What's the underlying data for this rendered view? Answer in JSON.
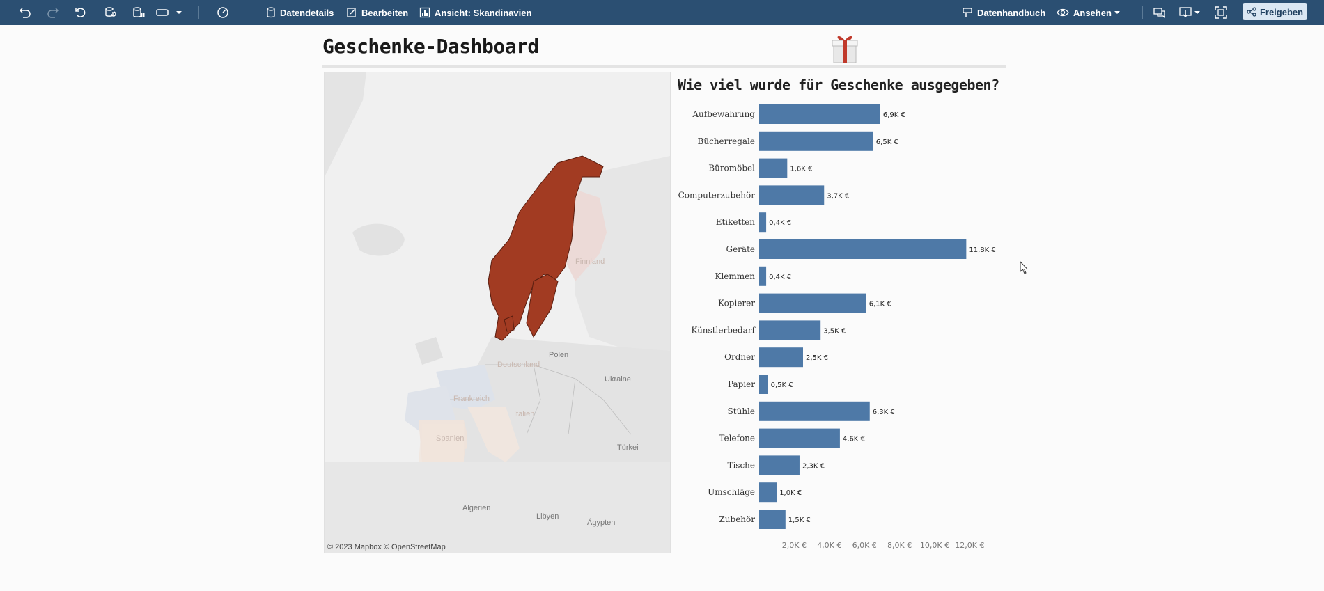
{
  "toolbar": {
    "data_details": "Datendetails",
    "edit": "Bearbeiten",
    "view_label": "Ansicht: Skandinavien",
    "data_guide": "Datenhandbuch",
    "watch": "Ansehen",
    "share": "Freigeben"
  },
  "dashboard": {
    "title": "Geschenke-Dashboard"
  },
  "map": {
    "attribution": "© 2023 Mapbox  © OpenStreetMap",
    "labels": {
      "finland": "Finnland",
      "poland": "Polen",
      "ukraine": "Ukraine",
      "germany": "Deutschland",
      "france": "Frankreich",
      "italy": "Italien",
      "spain": "Spanien",
      "turkey": "Türkei",
      "algeria": "Algerien",
      "libya": "Libyen",
      "egypt": "Ägypten"
    },
    "highlight_color": "#a23b22"
  },
  "chart_data": {
    "type": "bar",
    "orientation": "horizontal",
    "title": "Wie viel wurde für Geschenke ausgegeben?",
    "categories": [
      "Aufbewahrung",
      "Bücherregale",
      "Büromöbel",
      "Computerzubehör",
      "Etiketten",
      "Geräte",
      "Klemmen",
      "Kopierer",
      "Künstlerbedarf",
      "Ordner",
      "Papier",
      "Stühle",
      "Telefone",
      "Tische",
      "Umschläge",
      "Zubehör"
    ],
    "values": [
      6.9,
      6.5,
      1.6,
      3.7,
      0.4,
      11.8,
      0.4,
      6.1,
      3.5,
      2.5,
      0.5,
      6.3,
      4.6,
      2.3,
      1.0,
      1.5
    ],
    "data_labels": [
      "6,9K €",
      "6,5K €",
      "1,6K €",
      "3,7K €",
      "0,4K €",
      "11,8K €",
      "0,4K €",
      "6,1K €",
      "3,5K €",
      "2,5K €",
      "0,5K €",
      "6,3K €",
      "4,6K €",
      "2,3K €",
      "1,0K €",
      "1,5K €"
    ],
    "x_ticks": [
      "2,0K €",
      "4,0K €",
      "6,0K €",
      "8,0K €",
      "10,0K €",
      "12,0K €"
    ],
    "x_tick_values": [
      2,
      4,
      6,
      8,
      10,
      12
    ],
    "xlim": [
      0,
      12.5
    ],
    "xlabel": "",
    "ylabel": "",
    "bar_color": "#4e79a7",
    "grid": false
  }
}
